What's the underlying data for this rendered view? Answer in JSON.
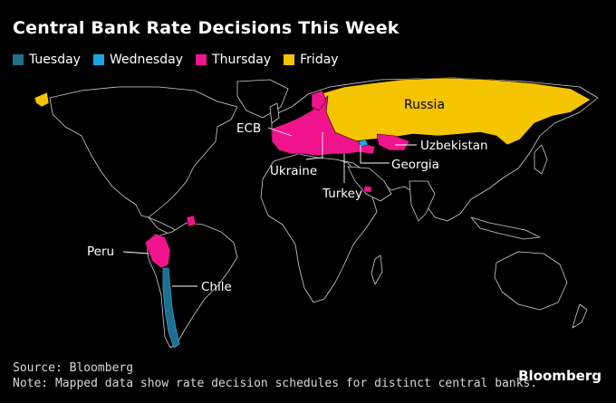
{
  "title": "Central Bank Rate Decisions This Week",
  "legend": [
    {
      "label": "Tuesday",
      "color": "#1f6e8c"
    },
    {
      "label": "Wednesday",
      "color": "#1aa7e0"
    },
    {
      "label": "Thursday",
      "color": "#f0148c"
    },
    {
      "label": "Friday",
      "color": "#f5c400"
    }
  ],
  "labels": {
    "russia": "Russia",
    "ecb": "ECB",
    "uzbekistan": "Uzbekistan",
    "georgia": "Georgia",
    "ukraine": "Ukraine",
    "turkey": "Turkey",
    "peru": "Peru",
    "chile": "Chile"
  },
  "footer": {
    "source": "Source: Bloomberg",
    "note": "Note: Mapped data show rate decision schedules for distinct central banks.",
    "brand": "Bloomberg"
  }
}
